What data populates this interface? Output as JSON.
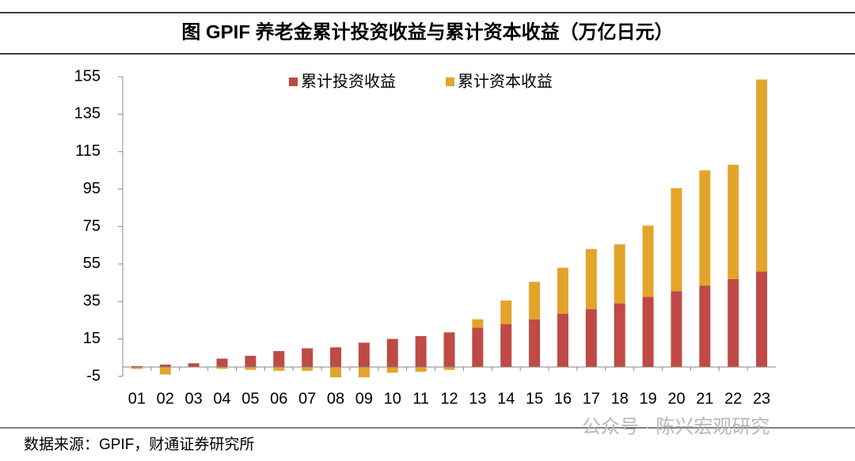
{
  "chart_data": {
    "type": "stacked_bar",
    "title": "图  GPIF 养老金累计投资收益与累计资本收益（万亿日元）",
    "categories": [
      "01",
      "02",
      "03",
      "04",
      "05",
      "06",
      "07",
      "08",
      "09",
      "10",
      "11",
      "12",
      "13",
      "14",
      "15",
      "16",
      "17",
      "18",
      "19",
      "20",
      "21",
      "22",
      "23"
    ],
    "series": [
      {
        "name": "累计投资收益",
        "color": "#bf4a46",
        "values": [
          0.5,
          1.3,
          2,
          4.5,
          6,
          8.5,
          10,
          10.5,
          13,
          15,
          16.5,
          18.5,
          21,
          23,
          25.5,
          28.5,
          31,
          34,
          37.5,
          40.5,
          43.5,
          47,
          51
        ]
      },
      {
        "name": "累计资本收益",
        "color": "#e3a42b",
        "values": [
          -1,
          -4,
          0,
          -1,
          -1.5,
          -2,
          -2,
          -5.5,
          -5.5,
          -3,
          -2.5,
          -1.5,
          4.5,
          12.5,
          20,
          24.5,
          32,
          31.5,
          38,
          55,
          61.5,
          61,
          102.5
        ]
      }
    ],
    "ylim": [
      -5,
      155
    ],
    "yticks": [
      -5,
      15,
      35,
      55,
      75,
      95,
      115,
      135,
      155
    ],
    "source": "数据来源：GPIF，财通证券研究所",
    "watermark": "公众号 · 陈兴宏观研究"
  }
}
